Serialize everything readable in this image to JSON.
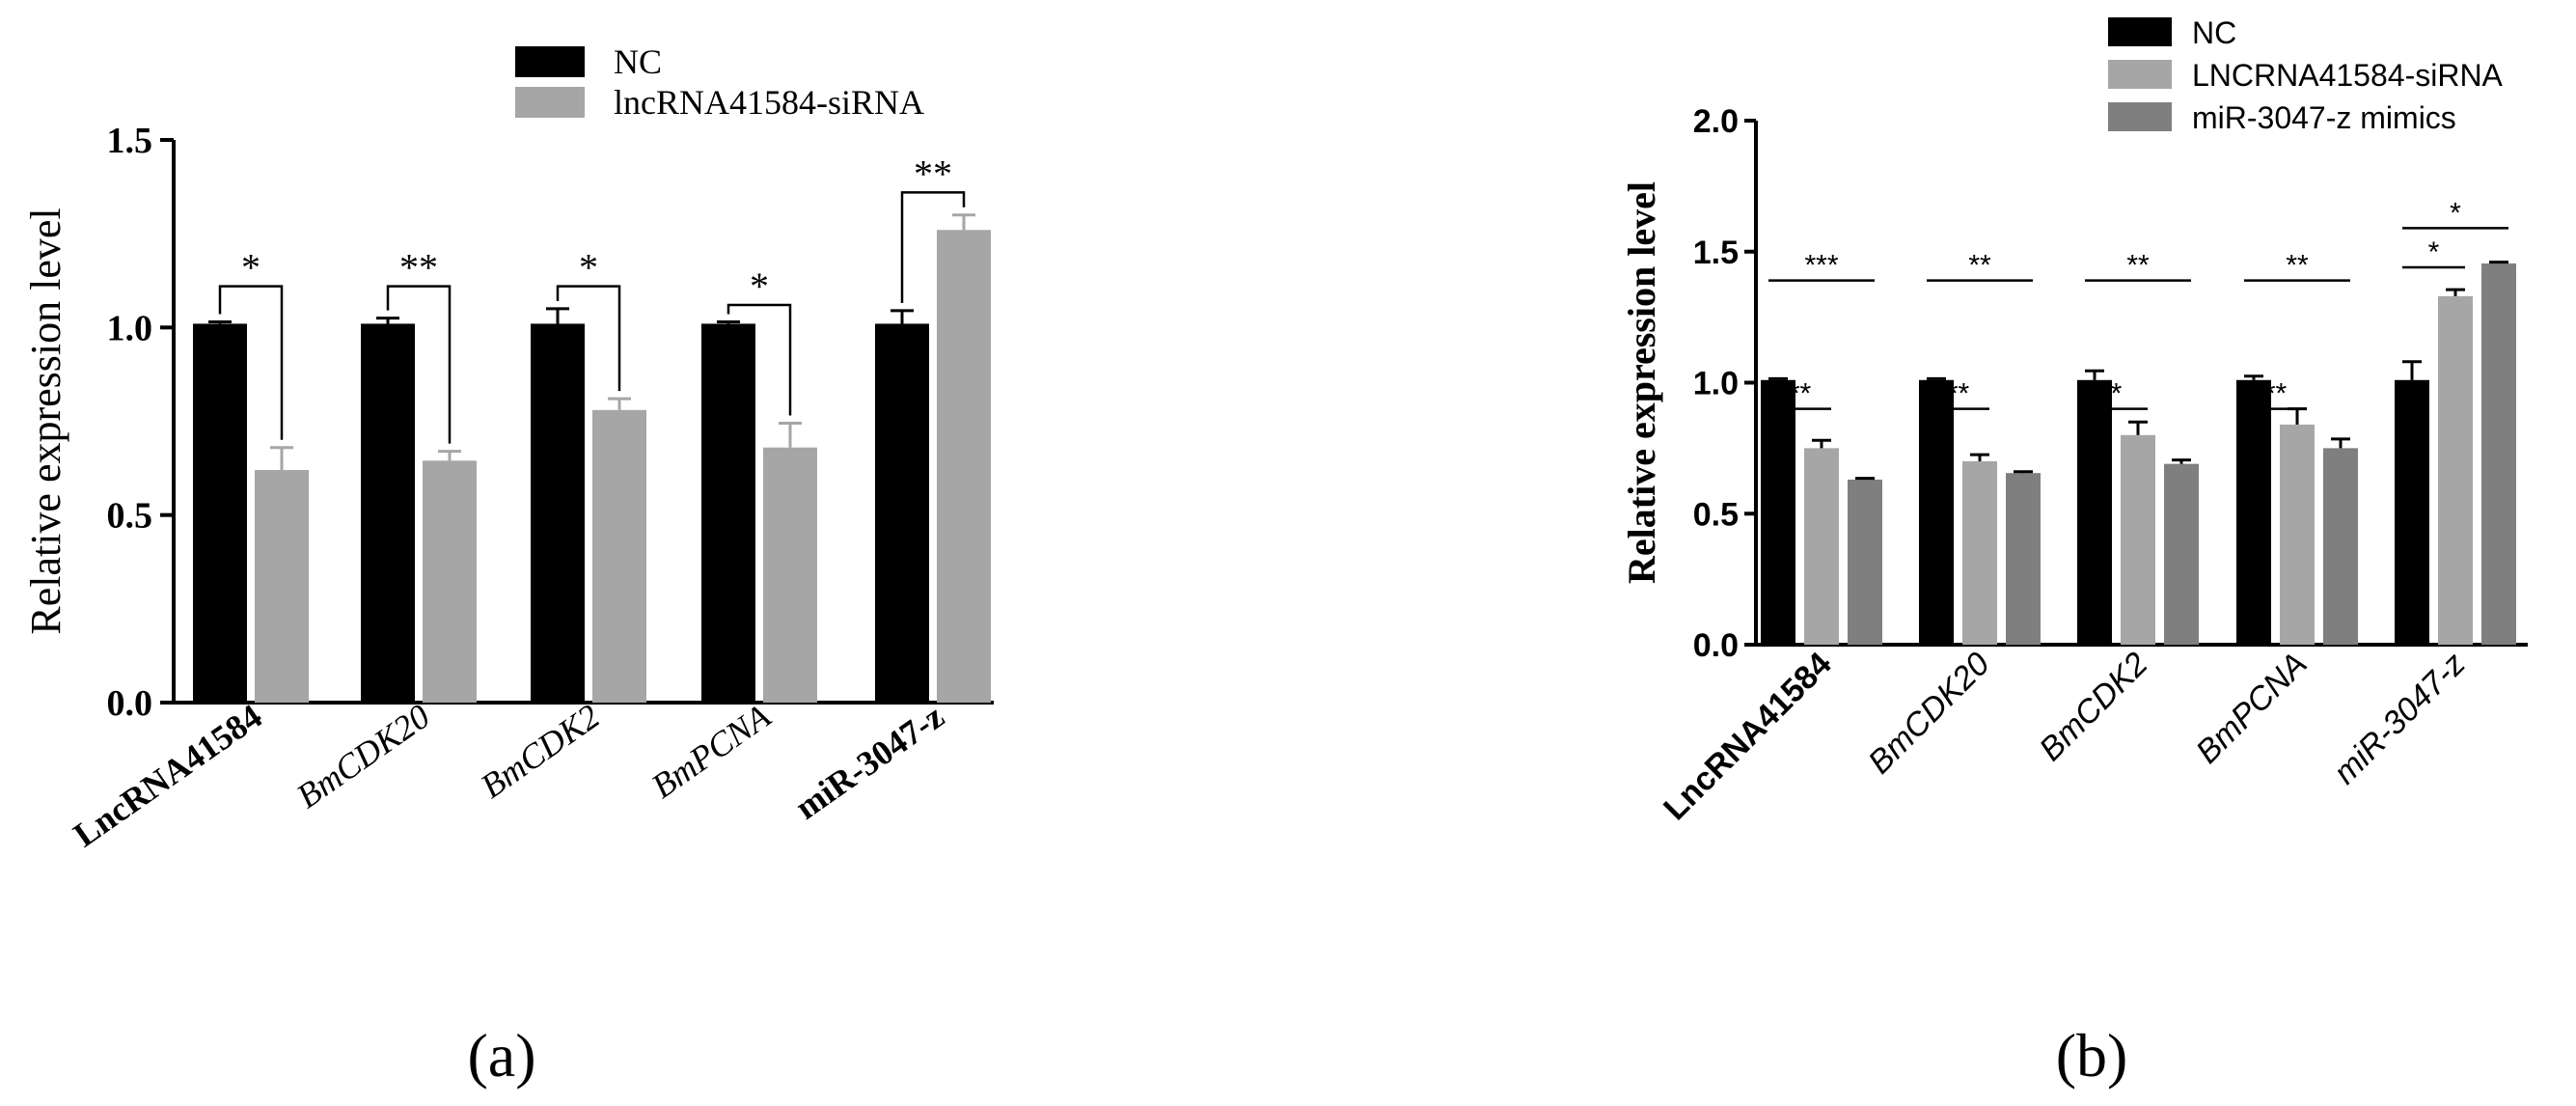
{
  "panels": [
    {
      "caption": "(a)",
      "chart_data": {
        "type": "bar",
        "title": "",
        "xlabel": "",
        "ylabel": "Relative expression level",
        "ylim": [
          0,
          1.5
        ],
        "yticks": [
          "0.0",
          "0.5",
          "1.0",
          "1.5"
        ],
        "categories": [
          "LncRNA41584",
          "BmCDK20",
          "BmCDK2",
          "BmPCNA",
          "miR-3047-z"
        ],
        "category_style": [
          "bold",
          "italic",
          "italic",
          "italic",
          "bold"
        ],
        "series": [
          {
            "name": "NC",
            "color": "#000000",
            "values": [
              1.01,
              1.01,
              1.01,
              1.01,
              1.01
            ],
            "errors": [
              0.005,
              0.015,
              0.04,
              0.005,
              0.035
            ]
          },
          {
            "name": "lncRNA41584-siRNA",
            "color": "#a6a6a6",
            "values": [
              0.62,
              0.645,
              0.78,
              0.68,
              1.26
            ],
            "errors": [
              0.06,
              0.025,
              0.03,
              0.065,
              0.04
            ]
          }
        ],
        "significance": [
          {
            "category": 0,
            "label": "*",
            "y": 1.11
          },
          {
            "category": 1,
            "label": "**",
            "y": 1.11
          },
          {
            "category": 2,
            "label": "*",
            "y": 1.11
          },
          {
            "category": 3,
            "label": "*",
            "y": 1.06
          },
          {
            "category": 4,
            "label": "**",
            "y": 1.36
          }
        ],
        "legend": "top-right"
      }
    },
    {
      "caption": "(b)",
      "chart_data": {
        "type": "bar",
        "title": "",
        "xlabel": "",
        "ylabel": "Relative expression level",
        "ylim": [
          0,
          2.0
        ],
        "yticks": [
          "0.0",
          "0.5",
          "1.0",
          "1.5",
          "2.0"
        ],
        "categories": [
          "LncRNA41584",
          "BmCDK20",
          "BmCDK2",
          "BmPCNA",
          "miR-3047-z"
        ],
        "category_style": [
          "bold",
          "italic",
          "italic",
          "italic",
          "italic"
        ],
        "series": [
          {
            "name": "NC",
            "color": "#000000",
            "values": [
              1.01,
              1.01,
              1.01,
              1.01,
              1.01
            ],
            "errors": [
              0.005,
              0.005,
              0.035,
              0.015,
              0.07
            ]
          },
          {
            "name": "LNCRNA41584-siRNA",
            "color": "#a6a6a6",
            "values": [
              0.75,
              0.7,
              0.8,
              0.84,
              1.33
            ],
            "errors": [
              0.03,
              0.025,
              0.05,
              0.06,
              0.025
            ]
          },
          {
            "name": "miR-3047-z mimics",
            "color": "#7f7f7f",
            "values": [
              0.63,
              0.655,
              0.69,
              0.75,
              1.455
            ],
            "errors": [
              0.005,
              0.005,
              0.015,
              0.035,
              0.005
            ]
          }
        ],
        "significance": [
          {
            "category": 0,
            "label": "**",
            "from": 0,
            "to": 1,
            "y": 0.9
          },
          {
            "category": 0,
            "label": "***",
            "from": 0,
            "to": 2,
            "y": 1.39
          },
          {
            "category": 1,
            "label": "**",
            "from": 0,
            "to": 1,
            "y": 0.9
          },
          {
            "category": 1,
            "label": "**",
            "from": 0,
            "to": 2,
            "y": 1.39
          },
          {
            "category": 2,
            "label": "*",
            "from": 0,
            "to": 1,
            "y": 0.9
          },
          {
            "category": 2,
            "label": "**",
            "from": 0,
            "to": 2,
            "y": 1.39
          },
          {
            "category": 3,
            "label": "**",
            "from": 0,
            "to": 1,
            "y": 0.9
          },
          {
            "category": 3,
            "label": "**",
            "from": 0,
            "to": 2,
            "y": 1.39
          },
          {
            "category": 4,
            "label": "*",
            "from": 0,
            "to": 1,
            "y": 1.44
          },
          {
            "category": 4,
            "label": "*",
            "from": 0,
            "to": 2,
            "y": 1.59
          }
        ],
        "legend": "top-right"
      }
    }
  ]
}
